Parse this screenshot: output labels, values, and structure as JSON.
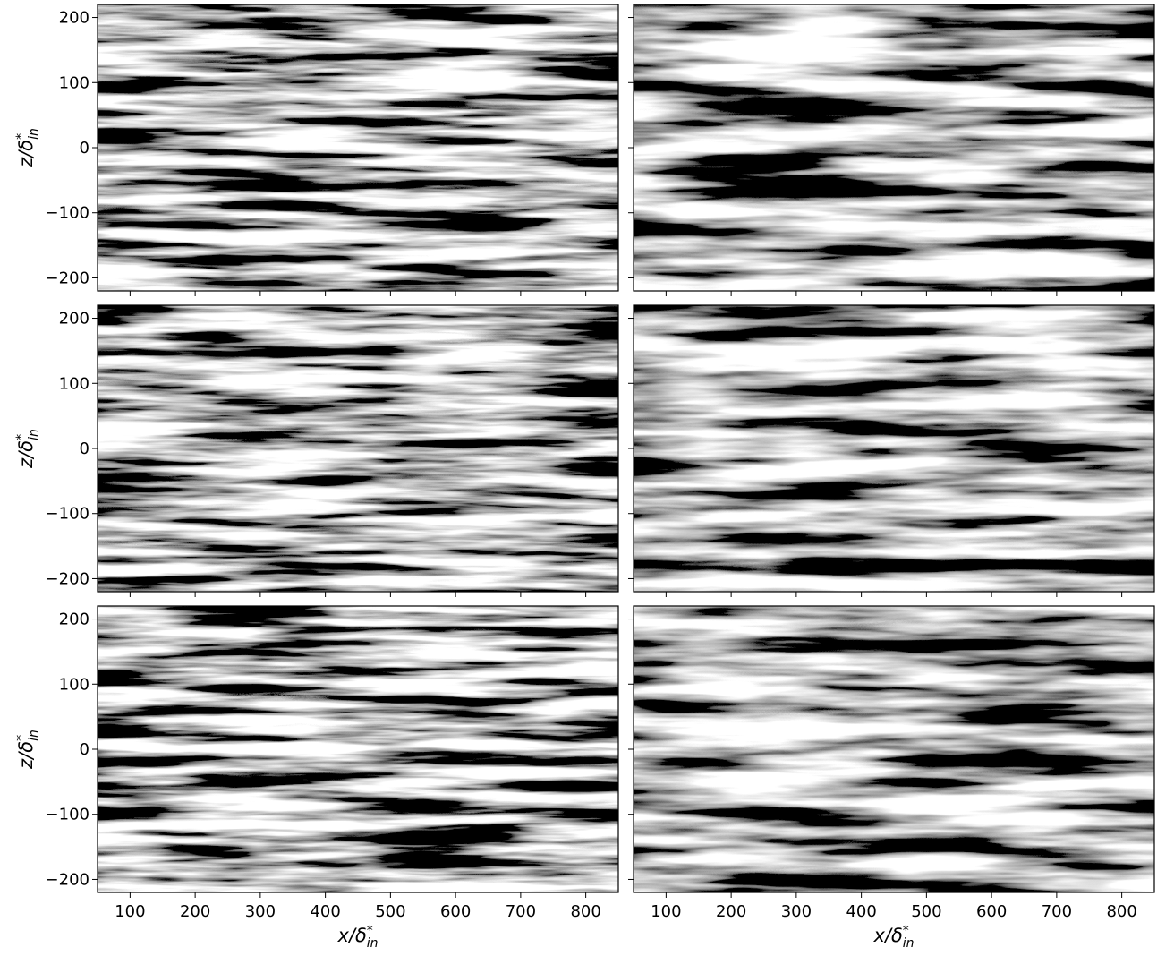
{
  "chart_data": {
    "type": "image-grid",
    "rows": 3,
    "cols": 2,
    "xlim": [
      50,
      850
    ],
    "xticks": [
      100,
      200,
      300,
      400,
      500,
      600,
      700,
      800
    ],
    "ylim": [
      -220,
      220
    ],
    "yticks": [
      {
        "value": -200,
        "label": "−200"
      },
      {
        "value": -100,
        "label": "−100"
      },
      0,
      100,
      200
    ],
    "xlabel": {
      "base": "x/δ",
      "sup": "*",
      "sub": "in"
    },
    "ylabel": {
      "base": "z/δ",
      "sup": "*",
      "sub": "in"
    },
    "sharex": true,
    "sharey": true,
    "colormap": "gray"
  }
}
